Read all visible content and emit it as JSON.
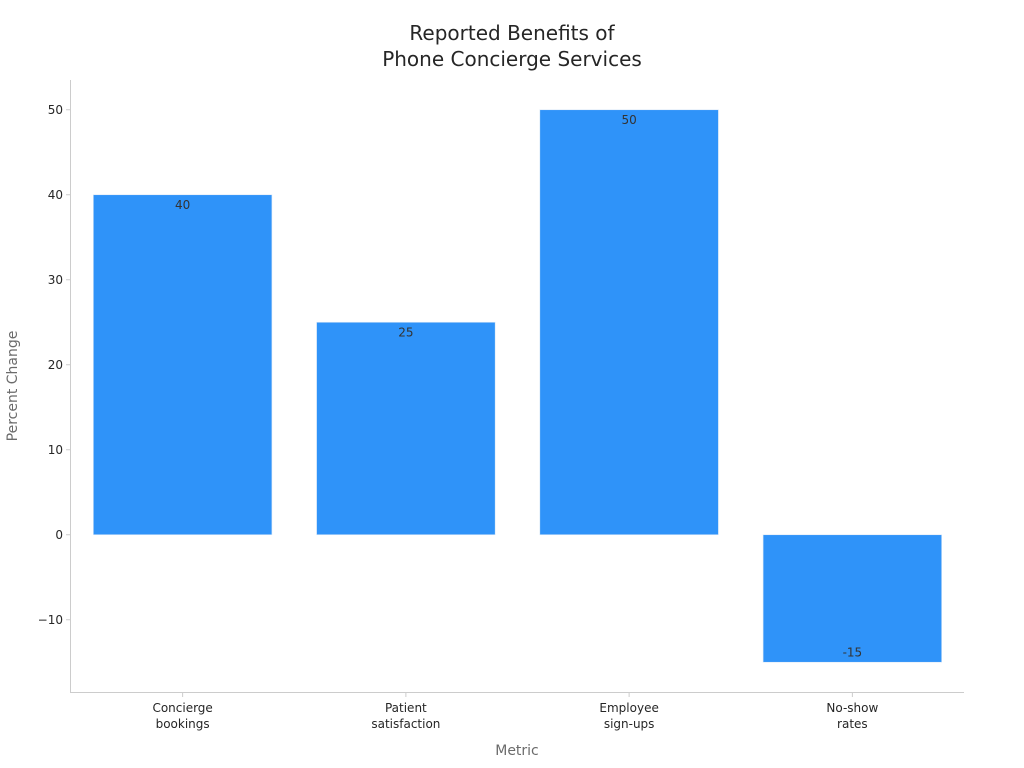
{
  "chart_data": {
    "type": "bar",
    "title_lines": [
      "Reported Benefits of",
      "Phone Concierge Services"
    ],
    "xlabel": "Metric",
    "ylabel": "Percent Change",
    "categories": [
      [
        "Concierge",
        "bookings"
      ],
      [
        "Patient",
        "satisfaction"
      ],
      [
        "Employee",
        "sign-ups"
      ],
      [
        "No-show",
        "rates"
      ]
    ],
    "values": [
      40,
      25,
      50,
      -15
    ],
    "value_labels": [
      "40",
      "25",
      "50",
      "-15"
    ],
    "ylim": [
      -18.5,
      53.5
    ],
    "yticks": [
      50,
      40,
      30,
      20,
      10,
      0,
      -10
    ],
    "ytick_labels": [
      "50",
      "40",
      "30",
      "20",
      "10",
      "0",
      "−10"
    ],
    "grid": false,
    "bar_color": "#2f93f9",
    "text_color": "#262626",
    "axis_color": "#cccccc"
  }
}
